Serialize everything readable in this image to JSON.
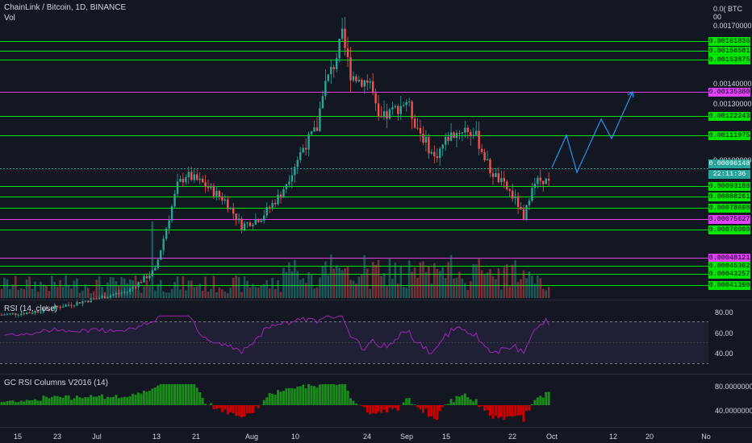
{
  "header": {
    "symbol": "ChainLink / Bitcoin, 1D, BINANCE",
    "vol_label": "Vol",
    "currency": "0.0( BTC 00"
  },
  "price_axis_labels": [
    "0.00170000",
    "0.00140000",
    "0.00130000",
    "0.00100000"
  ],
  "price_tags": [
    {
      "value": "0.00161836",
      "bg": "#00e600",
      "fg": "#000000"
    },
    {
      "value": "0.00156581",
      "bg": "#00e600",
      "fg": "#000000"
    },
    {
      "value": "0.00153875",
      "bg": "#00e600",
      "fg": "#000000"
    },
    {
      "value": "0.00135380",
      "bg": "#e040fb",
      "fg": "#000000"
    },
    {
      "value": "0.00122243",
      "bg": "#00e600",
      "fg": "#000000"
    },
    {
      "value": "0.00111975",
      "bg": "#00e600",
      "fg": "#000000"
    },
    {
      "value": "0.00096148",
      "bg": "#26a69a",
      "fg": "#ffffff"
    },
    {
      "value": "22:11:36",
      "bg": "#26a69a",
      "fg": "#ffffff"
    },
    {
      "value": "0.00093188",
      "bg": "#00e600",
      "fg": "#000000"
    },
    {
      "value": "0.00088261",
      "bg": "#00e600",
      "fg": "#000000"
    },
    {
      "value": "0.00078698",
      "bg": "#00e600",
      "fg": "#000000"
    },
    {
      "value": "0.00075627",
      "bg": "#e040fb",
      "fg": "#000000"
    },
    {
      "value": "0.00070090",
      "bg": "#00e600",
      "fg": "#000000"
    },
    {
      "value": "0.00048121",
      "bg": "#e040fb",
      "fg": "#000000"
    },
    {
      "value": "0.00045362",
      "bg": "#00e600",
      "fg": "#000000"
    },
    {
      "value": "0.00043257",
      "bg": "#00e600",
      "fg": "#000000"
    },
    {
      "value": "0.00041390",
      "bg": "#00e600",
      "fg": "#000000"
    }
  ],
  "rsi_pane": {
    "title": "RSI (14, close)",
    "levels": [
      "80.00",
      "60.00",
      "40.00"
    ]
  },
  "gc_pane": {
    "title": "GC RSI Columns V2016 (14)",
    "levels": [
      "80.00000000",
      "40.00000000"
    ]
  },
  "time_axis": [
    "15",
    "23",
    "Jul",
    "13",
    "21",
    "Aug",
    "10",
    "24",
    "Sep",
    "15",
    "22",
    "Oct",
    "12",
    "20",
    "No"
  ],
  "colors": {
    "up": "#26a69a",
    "down": "#ef5350",
    "level_green": "#00e600",
    "level_magenta": "#e040fb",
    "projection": "#2196f3",
    "rsi_line": "#9c27b0",
    "gc_up": "#1b8a1b",
    "gc_down": "#cc0000"
  }
}
